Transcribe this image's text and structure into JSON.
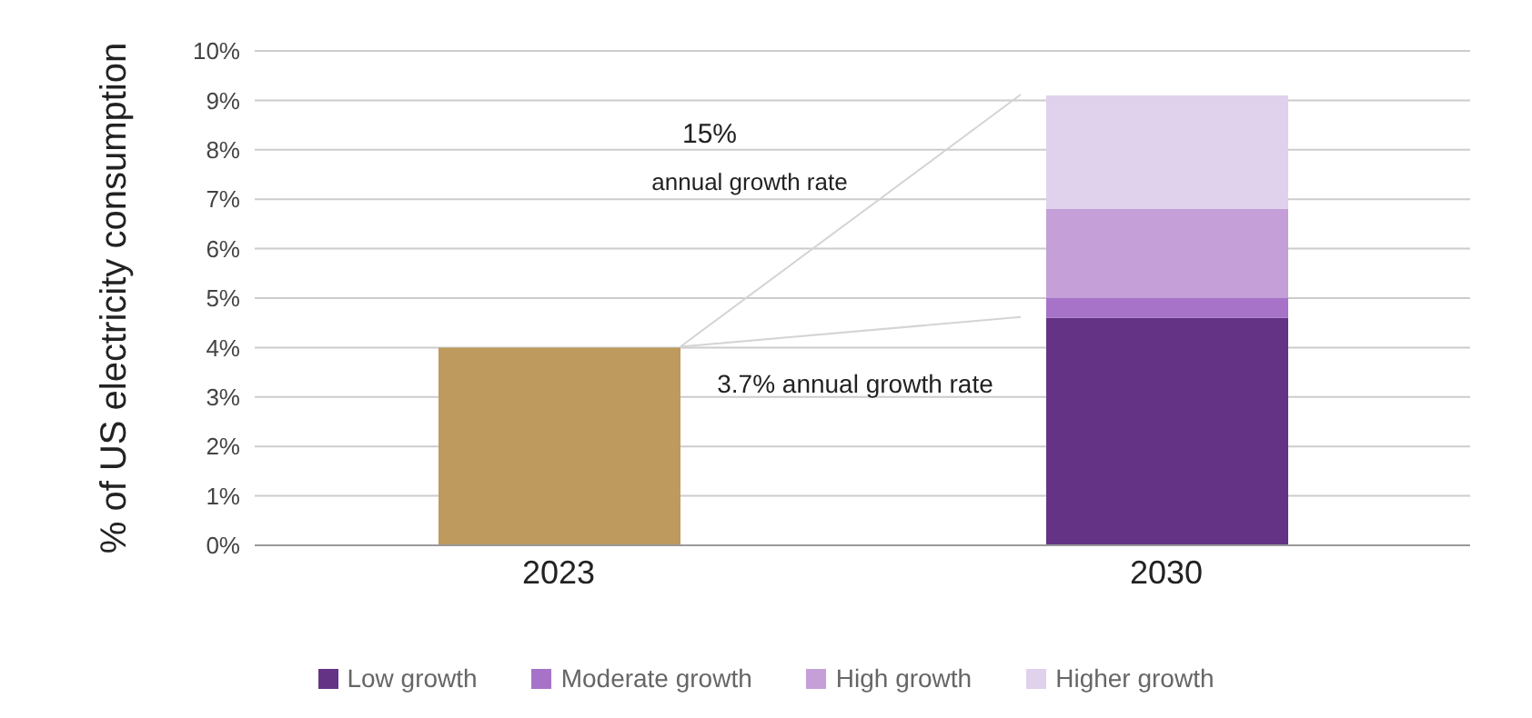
{
  "chart_data": {
    "type": "bar",
    "stacked": true,
    "ylabel": "% of US electricity consumption",
    "categories": [
      "2023",
      "2030"
    ],
    "series": [
      {
        "color": "#be9a5e",
        "values": [
          4.0,
          null
        ]
      },
      {
        "name": "Low growth",
        "color": "#643385",
        "values": [
          null,
          4.6
        ]
      },
      {
        "name": "Moderate growth",
        "color": "#a673c8",
        "values": [
          null,
          0.4
        ]
      },
      {
        "name": "High growth",
        "color": "#c49fd8",
        "values": [
          null,
          1.8
        ]
      },
      {
        "name": "Higher growth",
        "color": "#e0d1ec",
        "values": [
          null,
          2.3
        ]
      }
    ],
    "ylim": [
      0,
      10
    ],
    "yticks": [
      {
        "value": 0,
        "label": "0%"
      },
      {
        "value": 1,
        "label": "1%"
      },
      {
        "value": 2,
        "label": "2%"
      },
      {
        "value": 3,
        "label": "3%"
      },
      {
        "value": 4,
        "label": "4%"
      },
      {
        "value": 5,
        "label": "5%"
      },
      {
        "value": 6,
        "label": "6%"
      },
      {
        "value": 7,
        "label": "7%"
      },
      {
        "value": 8,
        "label": "8%"
      },
      {
        "value": 9,
        "label": "9%"
      },
      {
        "value": 10,
        "label": "10%"
      }
    ],
    "grid": "y",
    "legend": "bottom",
    "annotations": [
      "15%",
      "annual growth rate",
      "3.7%  annual growth rate"
    ]
  }
}
